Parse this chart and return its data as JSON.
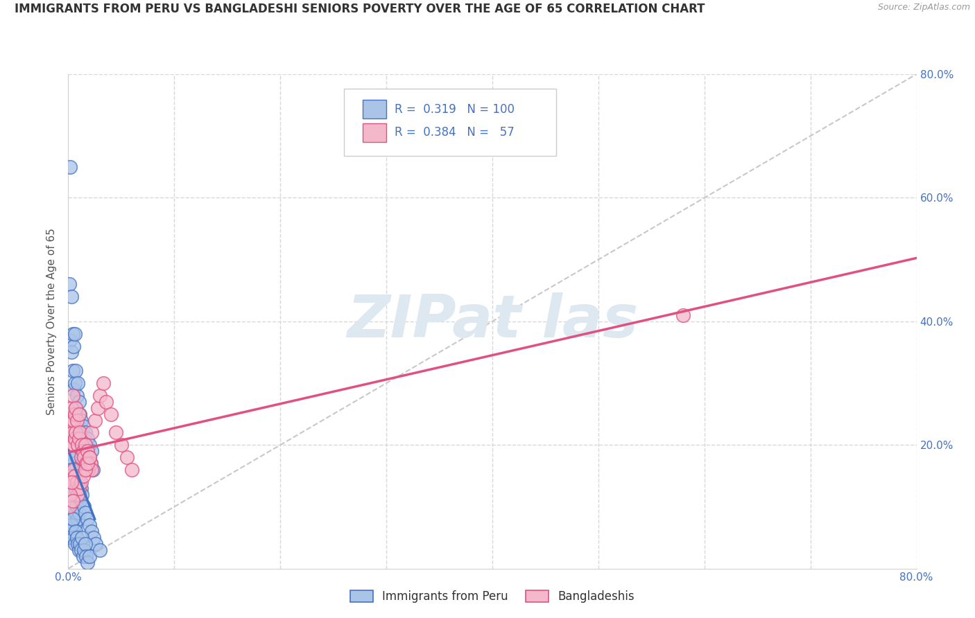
{
  "title": "IMMIGRANTS FROM PERU VS BANGLADESHI SENIORS POVERTY OVER THE AGE OF 65 CORRELATION CHART",
  "source": "Source: ZipAtlas.com",
  "ylabel": "Seniors Poverty Over the Age of 65",
  "legend_label1": "Immigrants from Peru",
  "legend_label2": "Bangladeshis",
  "r1": 0.319,
  "n1": 100,
  "r2": 0.384,
  "n2": 57,
  "color1": "#aac4e8",
  "color2": "#f4b8cb",
  "line_color1": "#4472c4",
  "line_color2": "#e05080",
  "ref_line_color": "#c8c8c8",
  "watermark_color": "#dde8f0",
  "xlim": [
    0.0,
    0.8
  ],
  "ylim": [
    0.0,
    0.8
  ],
  "peru_x": [
    0.002,
    0.001,
    0.002,
    0.003,
    0.003,
    0.004,
    0.004,
    0.005,
    0.005,
    0.006,
    0.006,
    0.007,
    0.007,
    0.008,
    0.009,
    0.01,
    0.01,
    0.011,
    0.012,
    0.013,
    0.014,
    0.015,
    0.016,
    0.017,
    0.018,
    0.019,
    0.02,
    0.021,
    0.022,
    0.023,
    0.001,
    0.002,
    0.003,
    0.004,
    0.005,
    0.006,
    0.007,
    0.008,
    0.009,
    0.01,
    0.011,
    0.012,
    0.002,
    0.003,
    0.004,
    0.005,
    0.005,
    0.006,
    0.006,
    0.007,
    0.001,
    0.001,
    0.002,
    0.002,
    0.003,
    0.003,
    0.004,
    0.004,
    0.001,
    0.001,
    0.002,
    0.002,
    0.003,
    0.004,
    0.005,
    0.005,
    0.006,
    0.007,
    0.008,
    0.009,
    0.01,
    0.011,
    0.013,
    0.015,
    0.016,
    0.018,
    0.02,
    0.022,
    0.024,
    0.026,
    0.001,
    0.002,
    0.003,
    0.004,
    0.005,
    0.006,
    0.007,
    0.008,
    0.009,
    0.01,
    0.011,
    0.012,
    0.013,
    0.014,
    0.015,
    0.016,
    0.017,
    0.018,
    0.02,
    0.03
  ],
  "peru_y": [
    0.65,
    0.46,
    0.37,
    0.44,
    0.35,
    0.38,
    0.32,
    0.36,
    0.29,
    0.38,
    0.3,
    0.32,
    0.26,
    0.28,
    0.3,
    0.27,
    0.22,
    0.25,
    0.24,
    0.22,
    0.23,
    0.2,
    0.22,
    0.19,
    0.21,
    0.18,
    0.2,
    0.17,
    0.19,
    0.16,
    0.25,
    0.22,
    0.2,
    0.18,
    0.17,
    0.16,
    0.15,
    0.14,
    0.13,
    0.12,
    0.14,
    0.13,
    0.18,
    0.16,
    0.15,
    0.14,
    0.13,
    0.12,
    0.11,
    0.12,
    0.15,
    0.12,
    0.13,
    0.1,
    0.11,
    0.09,
    0.1,
    0.08,
    0.09,
    0.07,
    0.08,
    0.06,
    0.07,
    0.05,
    0.08,
    0.06,
    0.07,
    0.09,
    0.1,
    0.08,
    0.09,
    0.11,
    0.12,
    0.1,
    0.09,
    0.08,
    0.07,
    0.06,
    0.05,
    0.04,
    0.05,
    0.06,
    0.07,
    0.08,
    0.05,
    0.04,
    0.06,
    0.05,
    0.04,
    0.03,
    0.04,
    0.03,
    0.05,
    0.02,
    0.03,
    0.04,
    0.02,
    0.01,
    0.02,
    0.03
  ],
  "bang_x": [
    0.001,
    0.002,
    0.003,
    0.003,
    0.004,
    0.004,
    0.005,
    0.005,
    0.006,
    0.006,
    0.007,
    0.007,
    0.008,
    0.009,
    0.01,
    0.01,
    0.011,
    0.012,
    0.013,
    0.014,
    0.015,
    0.016,
    0.017,
    0.018,
    0.019,
    0.02,
    0.021,
    0.022,
    0.003,
    0.004,
    0.005,
    0.006,
    0.007,
    0.008,
    0.009,
    0.01,
    0.012,
    0.014,
    0.016,
    0.018,
    0.02,
    0.022,
    0.025,
    0.028,
    0.03,
    0.033,
    0.036,
    0.04,
    0.045,
    0.05,
    0.055,
    0.06,
    0.001,
    0.002,
    0.003,
    0.004,
    0.58
  ],
  "bang_y": [
    0.22,
    0.24,
    0.2,
    0.26,
    0.22,
    0.28,
    0.24,
    0.2,
    0.25,
    0.21,
    0.26,
    0.22,
    0.24,
    0.2,
    0.25,
    0.21,
    0.22,
    0.18,
    0.2,
    0.19,
    0.18,
    0.2,
    0.17,
    0.19,
    0.16,
    0.18,
    0.17,
    0.16,
    0.15,
    0.14,
    0.16,
    0.15,
    0.13,
    0.14,
    0.12,
    0.13,
    0.14,
    0.15,
    0.16,
    0.17,
    0.18,
    0.22,
    0.24,
    0.26,
    0.28,
    0.3,
    0.27,
    0.25,
    0.22,
    0.2,
    0.18,
    0.16,
    0.1,
    0.12,
    0.14,
    0.11,
    0.41
  ]
}
